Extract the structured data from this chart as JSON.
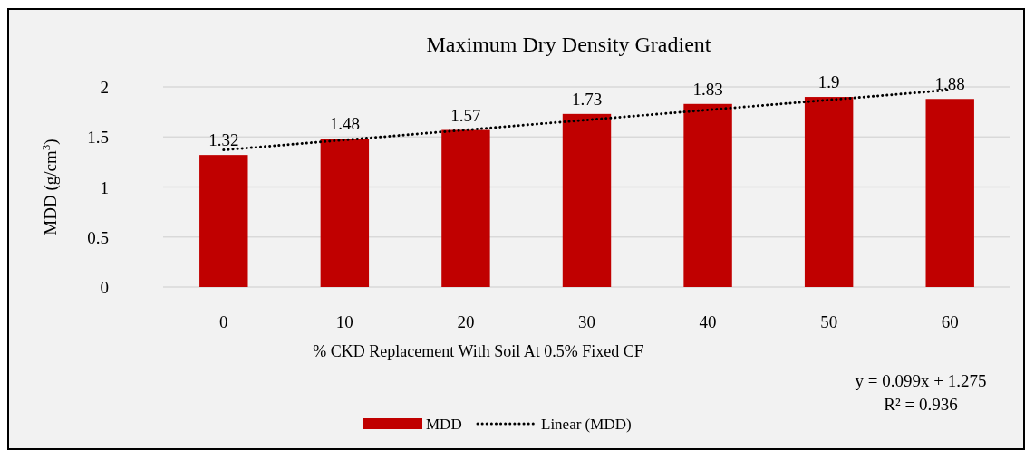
{
  "chart_data": {
    "type": "bar",
    "title": "Maximum Dry Density Gradient",
    "xlabel": "% CKD Replacement With Soil At 0.5% Fixed CF",
    "ylabel": "MDD (g/cm$^{3}$)",
    "categories": [
      "0",
      "10",
      "20",
      "30",
      "40",
      "50",
      "60"
    ],
    "series": [
      {
        "name": "MDD",
        "color": "#c00000",
        "values": [
          1.32,
          1.48,
          1.57,
          1.73,
          1.83,
          1.9,
          1.88
        ],
        "value_labels": [
          "1.32",
          "1.48",
          "1.57",
          "1.73",
          "1.83",
          "1.9",
          "1.88"
        ]
      },
      {
        "name": "Linear (MDD)",
        "type": "line",
        "color": "#000000",
        "line_style": "dotted",
        "values": [
          1.37,
          1.47,
          1.57,
          1.67,
          1.77,
          1.87,
          1.97
        ]
      }
    ],
    "ylim": [
      0,
      2
    ],
    "yticks": [
      0,
      0.5,
      1,
      1.5,
      2
    ],
    "grid": "y",
    "legend": "bottom",
    "annotations": [
      "y = 0.099x + 1.275",
      "R² = 0.936"
    ]
  }
}
